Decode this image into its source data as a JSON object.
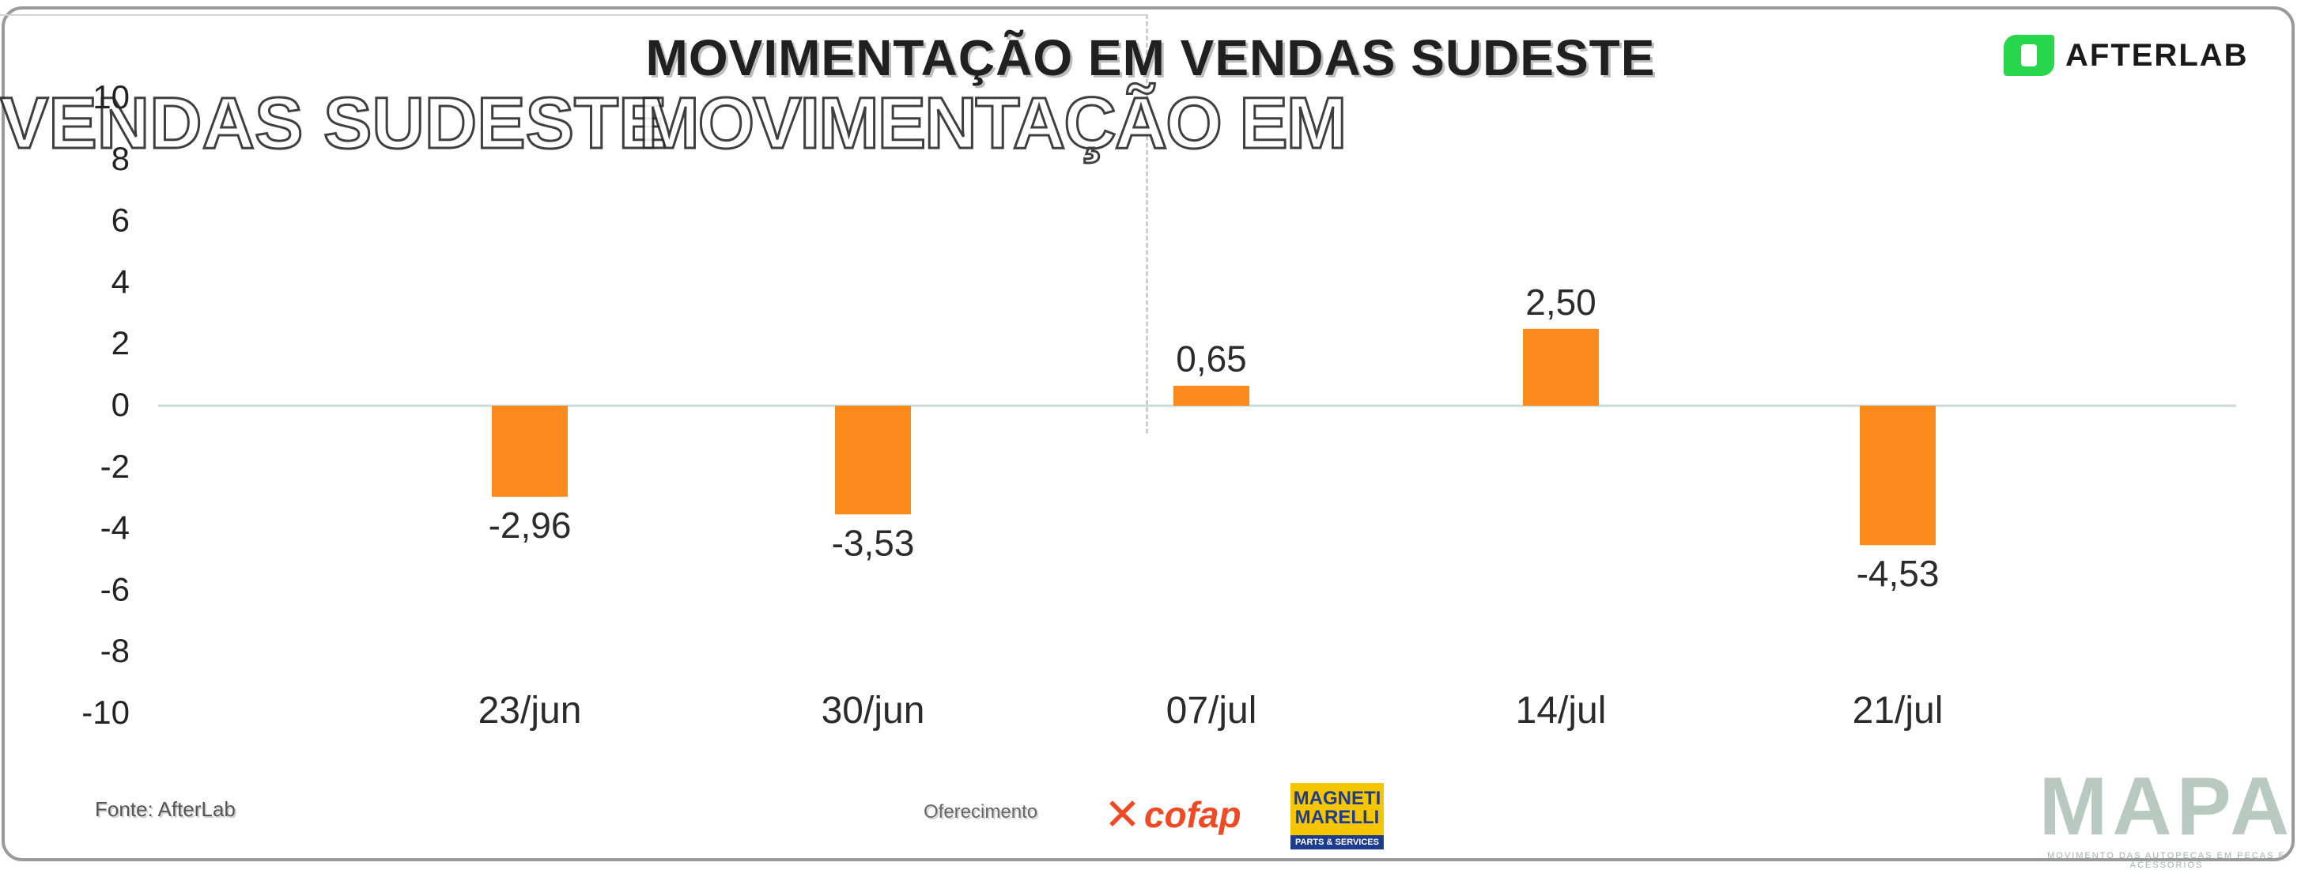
{
  "chart_data": {
    "type": "bar",
    "title": "MOVIMENTAÇÃO EM VENDAS SUDESTE",
    "categories": [
      "23/jun",
      "30/jun",
      "07/jul",
      "14/jul",
      "21/jul"
    ],
    "values": [
      -2.96,
      -3.53,
      0.65,
      2.5,
      -4.53
    ],
    "value_labels": [
      "-2,96",
      "-3,53",
      "0,65",
      "2,50",
      "-4,53"
    ],
    "ylim": [
      -10,
      10
    ],
    "yticks": [
      10,
      8,
      6,
      4,
      2,
      0,
      -2,
      -4,
      -6,
      -8,
      -10
    ],
    "xlabel": "",
    "ylabel": "",
    "grid": false,
    "legend": "none",
    "bar_color": "#f98a1b",
    "zero_line_color": "#c9dbd6"
  },
  "overlay": {
    "ghost_left": "VENDAS SUDESTE",
    "ghost_right": "MOVIMENTAÇÃO EM"
  },
  "brand": {
    "name": "AFTERLAB",
    "accent": "#27d64b"
  },
  "footer": {
    "source": "Fonte: AfterLab",
    "sponsor_label": "Oferecimento",
    "cofap": "cofap",
    "magneti_name": "MAGNETI\nMARELLI",
    "magneti_sub": "PARTS & SERVICES",
    "mapa": "MAPA",
    "mapa_tagline": "MOVIMENTO DAS AUTOPEÇAS EM PEÇAS E ACESSÓRIOS"
  }
}
